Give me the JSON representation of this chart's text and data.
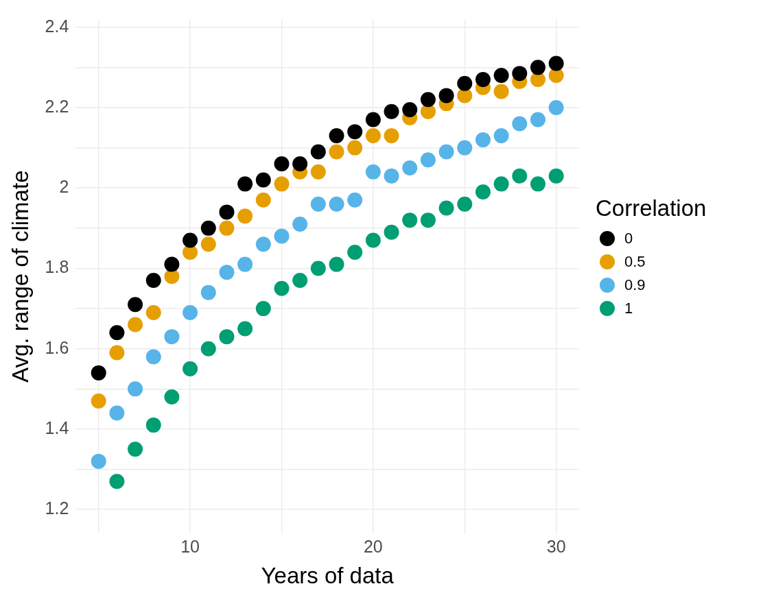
{
  "chart_data": {
    "type": "scatter",
    "xlabel": "Years of data",
    "ylabel": "Avg. range of climate",
    "legend_title": "Correlation",
    "legend": "right",
    "grid": true,
    "marker": "circle",
    "x": [
      5,
      6,
      7,
      8,
      9,
      10,
      11,
      12,
      13,
      14,
      15,
      16,
      17,
      18,
      19,
      20,
      21,
      22,
      23,
      24,
      25,
      26,
      27,
      28,
      29,
      30
    ],
    "xlim": [
      3.75,
      31.25
    ],
    "xticks": [
      {
        "value": 5,
        "label": null
      },
      10,
      {
        "value": 15,
        "label": null
      },
      20,
      {
        "value": 25,
        "label": null
      },
      30
    ],
    "ylim": [
      1.14,
      2.42
    ],
    "yticks": [
      1.2,
      {
        "value": 1.3,
        "label": null
      },
      1.4,
      {
        "value": 1.5,
        "label": null
      },
      1.6,
      {
        "value": 1.7,
        "label": null
      },
      1.8,
      {
        "value": 1.9,
        "label": null
      },
      2,
      {
        "value": 2.1,
        "label": null
      },
      2.2,
      {
        "value": 2.3,
        "label": null
      },
      2.4
    ],
    "series": [
      {
        "name": "0",
        "color": "#000000",
        "values": [
          1.54,
          1.64,
          1.71,
          1.77,
          1.81,
          1.87,
          1.9,
          1.94,
          2.01,
          2.02,
          2.06,
          2.06,
          2.09,
          2.13,
          2.14,
          2.17,
          2.19,
          2.195,
          2.22,
          2.23,
          2.26,
          2.27,
          2.28,
          2.285,
          2.3,
          2.31
        ]
      },
      {
        "name": "0.5",
        "color": "#e69f00",
        "values": [
          1.47,
          1.59,
          1.66,
          1.69,
          1.78,
          1.84,
          1.86,
          1.9,
          1.93,
          1.97,
          2.01,
          2.04,
          2.04,
          2.09,
          2.1,
          2.13,
          2.13,
          2.175,
          2.19,
          2.21,
          2.23,
          2.25,
          2.24,
          2.265,
          2.27,
          2.28
        ]
      },
      {
        "name": "0.9",
        "color": "#56b4e9",
        "values": [
          1.32,
          1.44,
          1.5,
          1.58,
          1.63,
          1.69,
          1.74,
          1.79,
          1.81,
          1.86,
          1.88,
          1.91,
          1.96,
          1.96,
          1.97,
          2.04,
          2.03,
          2.05,
          2.07,
          2.09,
          2.1,
          2.12,
          2.13,
          2.16,
          2.17,
          2.2
        ]
      },
      {
        "name": "1",
        "color": "#009e73",
        "values": [
          null,
          1.27,
          1.35,
          1.41,
          1.48,
          1.55,
          1.6,
          1.63,
          1.65,
          1.7,
          1.75,
          1.77,
          1.8,
          1.81,
          1.84,
          1.87,
          1.89,
          1.92,
          1.92,
          1.95,
          1.96,
          1.99,
          2.01,
          2.03,
          2.01,
          2.03
        ]
      }
    ]
  }
}
